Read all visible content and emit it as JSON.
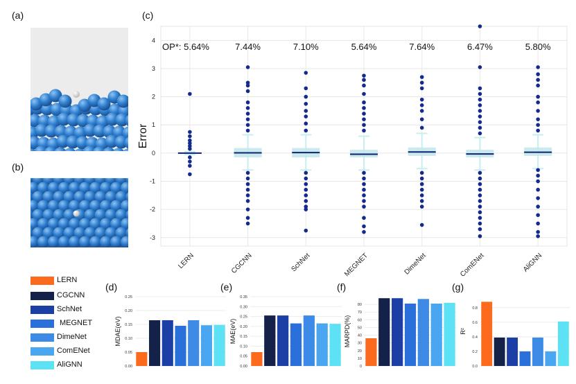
{
  "panels": {
    "a": "(a)",
    "b": "(b)",
    "c": "(c)",
    "d": "(d)",
    "e": "(e)",
    "f": "(f)",
    "g": "(g)"
  },
  "colors": {
    "LERN": "#fb6a1d",
    "CGCNN": "#14224a",
    "SchNet": "#1c3fa6",
    "MEGNET": "#2a70db",
    "DimeNet": "#3d8be6",
    "ComENet": "#4aa6f0",
    "AliGNN": "#5ce1f5",
    "point": "#142a8c",
    "median": "#13206e",
    "box": "#bfe8ec",
    "whisker": "#c7eef2",
    "surface_bg": "#ececec",
    "atom": "#2f7fd0",
    "atom_light": "#8fc3f2",
    "adsorbate": "#ffffff"
  },
  "legend": [
    "LERN",
    "CGCNN",
    "SchNet",
    "MEGNET",
    "DimeNet",
    "ComENet",
    "AliGNN"
  ],
  "chart_data": [
    {
      "type": "box",
      "panel": "(c)",
      "ylabel": "Error",
      "ylim": [
        -3.3,
        4.5
      ],
      "yticks": [
        -3,
        -2,
        -1,
        0,
        1,
        2,
        3,
        4
      ],
      "categories": [
        "LERN",
        "CGCNN",
        "SchNet",
        "MEGNET",
        "DimeNet",
        "ComENet",
        "AliGNN"
      ],
      "op_prefix": "OP*:",
      "op_values": [
        "5.64%",
        "7.44%",
        "7.10%",
        "5.64%",
        "7.64%",
        "6.47%",
        "5.80%"
      ],
      "median": [
        0.0,
        0.01,
        0.02,
        -0.04,
        0.04,
        -0.03,
        0.03
      ],
      "q1": [
        -0.02,
        -0.15,
        -0.15,
        -0.15,
        -0.1,
        -0.15,
        -0.1
      ],
      "q3": [
        0.02,
        0.18,
        0.18,
        0.12,
        0.2,
        0.12,
        0.2
      ],
      "whisker_low": [
        -0.05,
        -0.6,
        -0.6,
        -0.6,
        -0.55,
        -0.6,
        -0.55
      ],
      "whisker_high": [
        0.05,
        0.65,
        0.65,
        0.6,
        0.7,
        0.55,
        0.65
      ],
      "outliers": [
        [
          2.1,
          0.75,
          0.6,
          0.45,
          0.35,
          0.25,
          0.15,
          -0.15,
          -0.3,
          -0.45,
          -0.75
        ],
        [
          3.05,
          2.5,
          2.4,
          2.2,
          1.8,
          1.6,
          1.4,
          1.2,
          1.0,
          0.8,
          -0.7,
          -0.9,
          -1.1,
          -1.3,
          -1.5,
          -1.7,
          -2.0,
          -2.3,
          -2.5
        ],
        [
          2.85,
          2.3,
          2.0,
          1.75,
          1.5,
          1.3,
          1.05,
          0.8,
          -0.7,
          -0.9,
          -1.1,
          -1.3,
          -1.5,
          -1.7,
          -1.9,
          -2.0,
          -2.75
        ],
        [
          2.75,
          2.6,
          2.4,
          2.1,
          1.8,
          1.6,
          1.4,
          1.2,
          1.0,
          0.8,
          -0.7,
          -0.9,
          -1.1,
          -1.3,
          -1.5,
          -1.7,
          -1.9,
          -2.3,
          -2.6,
          -2.8
        ],
        [
          2.7,
          2.5,
          2.3,
          1.9,
          1.7,
          1.5,
          1.2,
          0.9,
          -0.7,
          -0.9,
          -1.1,
          -1.3,
          -1.5,
          -1.7,
          -1.9,
          -2.55
        ],
        [
          4.5,
          3.05,
          2.3,
          2.1,
          1.9,
          1.7,
          1.5,
          1.3,
          1.1,
          0.9,
          0.7,
          -0.7,
          -0.9,
          -1.1,
          -1.3,
          -1.5,
          -1.7,
          -1.9,
          -2.1,
          -2.3,
          -2.5,
          -2.7,
          -2.95
        ],
        [
          3.05,
          2.8,
          2.6,
          2.4,
          2.0,
          1.8,
          1.5,
          1.2,
          1.0,
          0.8,
          -0.6,
          -0.8,
          -1.0,
          -1.3,
          -1.6,
          -1.9,
          -2.2,
          -2.5,
          -2.8,
          -2.95
        ]
      ]
    },
    {
      "type": "bar",
      "panel": "(d)",
      "ylabel": "MDAE(eV)",
      "ylim": [
        0,
        0.25
      ],
      "yticks": [
        0.0,
        0.05,
        0.1,
        0.15,
        0.2,
        0.25
      ],
      "ytick_labels": [
        "0.00",
        "0.05",
        "0.10",
        "0.15",
        "0.20",
        "0.25"
      ],
      "categories": [
        "LERN",
        "CGCNN",
        "SchNet",
        "MEGNET",
        "DimeNet",
        "ComENet",
        "AliGNN"
      ],
      "values": [
        0.05,
        0.165,
        0.165,
        0.145,
        0.165,
        0.147,
        0.148
      ]
    },
    {
      "type": "bar",
      "panel": "(e)",
      "ylabel": "MAE(eV)",
      "ylim": [
        0,
        0.35
      ],
      "yticks": [
        0.0,
        0.05,
        0.1,
        0.15,
        0.2,
        0.25,
        0.3,
        0.35
      ],
      "ytick_labels": [
        "0.00",
        "0.05",
        "0.10",
        "0.15",
        "0.20",
        "0.25",
        "0.30",
        "0.35"
      ],
      "categories": [
        "LERN",
        "CGCNN",
        "SchNet",
        "MEGNET",
        "DimeNet",
        "ComENet",
        "AliGNN"
      ],
      "values": [
        0.07,
        0.255,
        0.255,
        0.215,
        0.255,
        0.215,
        0.213
      ]
    },
    {
      "type": "bar",
      "panel": "(f)",
      "ylabel": "MARPD(%)",
      "ylim": [
        0,
        90
      ],
      "yticks": [
        0,
        10,
        20,
        30,
        40,
        50,
        60,
        70,
        80
      ],
      "ytick_labels": [
        "0",
        "10",
        "20",
        "30",
        "40",
        "50",
        "60",
        "70",
        "80"
      ],
      "categories": [
        "LERN",
        "CGCNN",
        "SchNet",
        "MEGNET",
        "DimeNet",
        "ComENet",
        "AliGNN"
      ],
      "values": [
        36,
        88,
        88,
        81,
        87,
        81,
        82
      ]
    },
    {
      "type": "bar",
      "panel": "(g)",
      "ylabel": "R²",
      "ylim": [
        0,
        0.95
      ],
      "yticks": [
        0.0,
        0.2,
        0.4,
        0.6,
        0.8
      ],
      "ytick_labels": [
        "0.0",
        "0.2",
        "0.4",
        "0.6",
        "0.8"
      ],
      "categories": [
        "LERN",
        "CGCNN",
        "SchNet",
        "MEGNET",
        "DimeNet",
        "ComENet",
        "AliGNN"
      ],
      "values": [
        0.88,
        0.39,
        0.39,
        0.2,
        0.39,
        0.2,
        0.61
      ]
    }
  ]
}
